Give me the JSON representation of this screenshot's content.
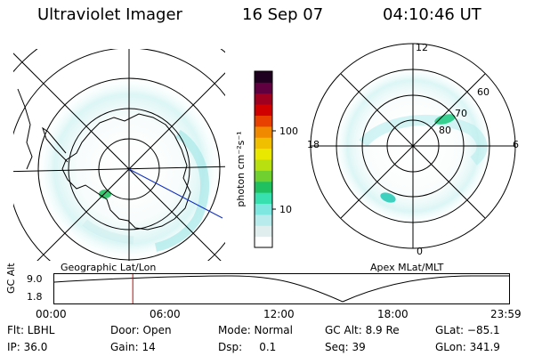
{
  "header": {
    "instrument": "Ultraviolet Imager",
    "date": "16 Sep 07",
    "time": "04:10:46 UT"
  },
  "geo_panel": {
    "caption": "Geographic Lat/Lon"
  },
  "colorbar": {
    "unit_label": "photon cm⁻²s⁻¹",
    "tick_labels": [
      "100",
      "10"
    ],
    "colors": [
      "#ffffff",
      "#e0eeee",
      "#b8ecec",
      "#7ee8e0",
      "#38e0b0",
      "#20c060",
      "#70d030",
      "#b8e010",
      "#e8e800",
      "#f0c000",
      "#f08800",
      "#e84000",
      "#d00000",
      "#a00020",
      "#600040",
      "#200020"
    ]
  },
  "mlt_panel": {
    "caption": "Apex MLat/MLT",
    "mlt_labels": {
      "top": "12",
      "left": "18",
      "right": "6",
      "bottom": "0"
    },
    "lat_labels": [
      "60",
      "70",
      "80"
    ]
  },
  "altitude_plot": {
    "ylabel": "GC Alt",
    "yticks": [
      "9.0",
      "1.8"
    ],
    "xticks": [
      "00:00",
      "06:00",
      "12:00",
      "18:00",
      "23:59"
    ],
    "marker_hour": 4.18,
    "curve_color": "#000000",
    "marker_color": "#d00000"
  },
  "status": {
    "row1": [
      "Flt: LBHL",
      "Door: Open",
      "Mode: Normal",
      "GC Alt: 8.9 Re",
      "GLat: −85.1"
    ],
    "row2": [
      "IP: 36.0",
      "Gain: 14",
      "Dsp:     0.1",
      "Seq: 39",
      "GLon: 341.9"
    ]
  }
}
